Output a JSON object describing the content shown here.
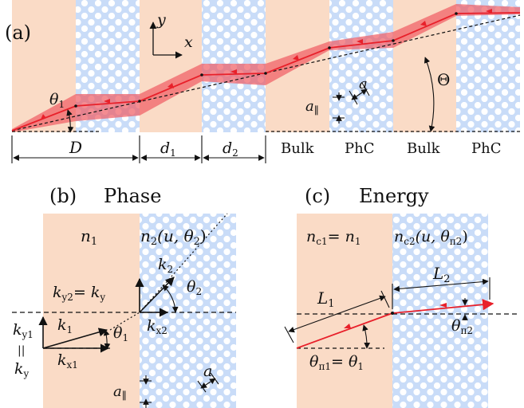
{
  "colors": {
    "bulk": "#fadbc6",
    "phc": "#c9dcf8",
    "hole": "#ffffff",
    "beam": "#e8202a",
    "beam_fill": "#ef5b63",
    "ink": "#111111"
  },
  "panel_a": {
    "label": "(a)",
    "axis_y": "y",
    "axis_x": "x",
    "theta1": "θ",
    "theta1_sub": "1",
    "Theta": "Θ",
    "a": "a",
    "a_par": "a",
    "a_par_sub": "∥",
    "dim_D": "D",
    "dim_d1": "d",
    "dim_d1_sub": "1",
    "dim_d2": "d",
    "dim_d2_sub": "2",
    "bulk1": "Bulk",
    "phc1": "PhC",
    "bulk2": "Bulk",
    "phc2": "PhC"
  },
  "panel_b": {
    "label": "(b)",
    "title": "Phase",
    "n1": "n",
    "n1_sub": "1",
    "n2": "n",
    "n2_sub": "2",
    "n2_args": "(u, θ",
    "n2_args_sub": "2",
    "n2_close": ")",
    "k2": "k",
    "k2_sub": "2",
    "ky2_eq": "= k",
    "ky2": "k",
    "ky2_sub": "y2",
    "ky2_rhs_sub": "y",
    "theta2": "θ",
    "theta2_sub": "2",
    "k1": "k",
    "k1_sub": "1",
    "theta1": "θ",
    "theta1_sub": "1",
    "kx2": "k",
    "kx2_sub": "x2",
    "ky1": "k",
    "ky1_sub": "y1",
    "par": "||",
    "ky": "k",
    "ky_sub": "y",
    "kx1": "k",
    "kx1_sub": "x1",
    "a": "a",
    "a_par": "a",
    "a_par_sub": "∥"
  },
  "panel_c": {
    "label": "(c)",
    "title": "Energy",
    "nc1": "n",
    "nc1_sub": "c1",
    "nc1_eq": "= n",
    "nc1_rhs_sub": "1",
    "nc2": "n",
    "nc2_sub": "c2",
    "nc2_args": "(u, θ",
    "nc2_args_sub": "π2",
    "nc2_close": ")",
    "L1": "L",
    "L1_sub": "1",
    "L2": "L",
    "L2_sub": "2",
    "thpi2": "θ",
    "thpi2_sub": "π2",
    "thpi1": "θ",
    "thpi1_sub": "π1",
    "thpi1_eq": "= θ",
    "thpi1_rhs_sub": "1"
  }
}
